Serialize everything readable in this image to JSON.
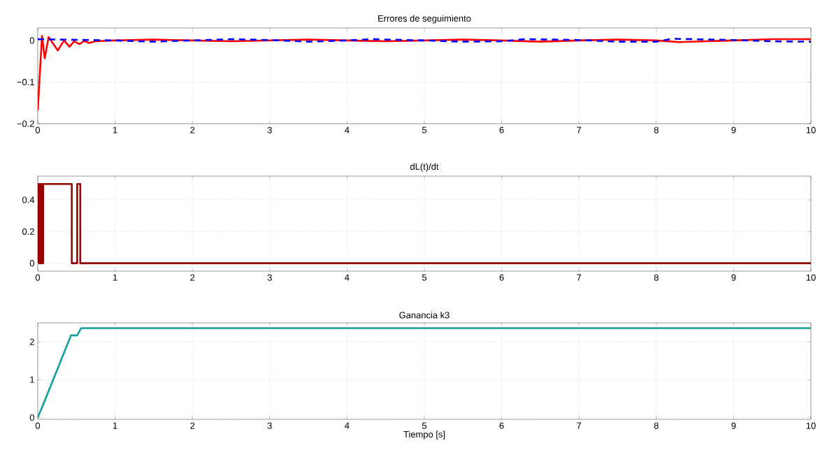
{
  "chart_data": [
    {
      "type": "line",
      "title": "Errores de seguimiento",
      "xlim": [
        0,
        10
      ],
      "xticks": [
        0,
        1,
        2,
        3,
        4,
        5,
        6,
        7,
        8,
        9,
        10
      ],
      "ylim": [
        -0.2,
        0.03
      ],
      "yticks": [
        {
          "value": -0.2,
          "label": "−0.2"
        },
        {
          "value": -0.1,
          "label": "−0.1"
        },
        0
      ],
      "grid": true,
      "series": [
        {
          "color": "#ff0000",
          "line_style": "solid",
          "x": [
            0,
            0.055,
            0.09,
            0.14,
            0.26,
            0.34,
            0.41,
            0.47,
            0.54,
            0.6,
            0.66,
            0.75,
            1.0,
            1.5,
            2.0,
            2.5,
            3.0,
            3.5,
            4.0,
            4.5,
            5.0,
            5.5,
            6.0,
            6.5,
            7.0,
            7.5,
            8.0,
            8.3,
            9.0,
            9.5,
            10
          ],
          "values": [
            -0.168,
            0.011,
            -0.043,
            0.008,
            -0.024,
            0.0,
            -0.015,
            -0.002,
            -0.009,
            -0.001,
            -0.006,
            -0.002,
            0.0,
            0.002,
            0.0,
            -0.002,
            0.0,
            0.002,
            0.0,
            -0.002,
            0.0,
            0.002,
            0.0,
            -0.003,
            0.0,
            0.002,
            0.0,
            -0.004,
            0.0,
            0.003,
            0.003
          ]
        },
        {
          "color": "#0000ff",
          "line_style": "dashed",
          "x": [
            0,
            1,
            1.5,
            2,
            2.5,
            3,
            3.5,
            4,
            4.3,
            5,
            5.5,
            6,
            6.3,
            7,
            7.5,
            8,
            8.2,
            9,
            9.5,
            10
          ],
          "values": [
            0.003,
            0.0,
            -0.003,
            0.0,
            0.003,
            0.001,
            -0.003,
            0.0,
            0.003,
            0.0,
            -0.003,
            -0.002,
            0.003,
            0.001,
            -0.003,
            -0.003,
            0.004,
            0.001,
            -0.002,
            -0.003
          ]
        }
      ]
    },
    {
      "type": "line",
      "title": "dL(t)/dt",
      "xlim": [
        0,
        10
      ],
      "xticks": [
        0,
        1,
        2,
        3,
        4,
        5,
        6,
        7,
        8,
        9,
        10
      ],
      "ylim": [
        -0.05,
        0.55
      ],
      "yticks": [
        0,
        0.2,
        0.4
      ],
      "grid": true,
      "series": [
        {
          "color": "#990000",
          "line_style": "solid",
          "x": [
            0,
            0,
            0.02,
            0.02,
            0.04,
            0.04,
            0.06,
            0.06,
            0.07,
            0.07,
            0.44,
            0.44,
            0.51,
            0.51,
            0.55,
            0.55,
            10
          ],
          "values": [
            0,
            0.5,
            0.5,
            0,
            0,
            0.5,
            0.5,
            0,
            0,
            0.5,
            0.5,
            0,
            0,
            0.5,
            0.5,
            0,
            0
          ]
        }
      ]
    },
    {
      "type": "line",
      "title": "Ganancia k3",
      "xlabel": "Tiempo [s]",
      "xlim": [
        0,
        10
      ],
      "xticks": [
        0,
        1,
        2,
        3,
        4,
        5,
        6,
        7,
        8,
        9,
        10
      ],
      "ylim": [
        -0.05,
        2.5
      ],
      "yticks": [
        0,
        1,
        2
      ],
      "grid": true,
      "series": [
        {
          "color": "#169f9a",
          "line_style": "solid",
          "x": [
            0,
            0.07,
            0.43,
            0.51,
            0.56,
            10
          ],
          "values": [
            0,
            0.34,
            2.17,
            2.17,
            2.36,
            2.36
          ]
        }
      ]
    }
  ]
}
